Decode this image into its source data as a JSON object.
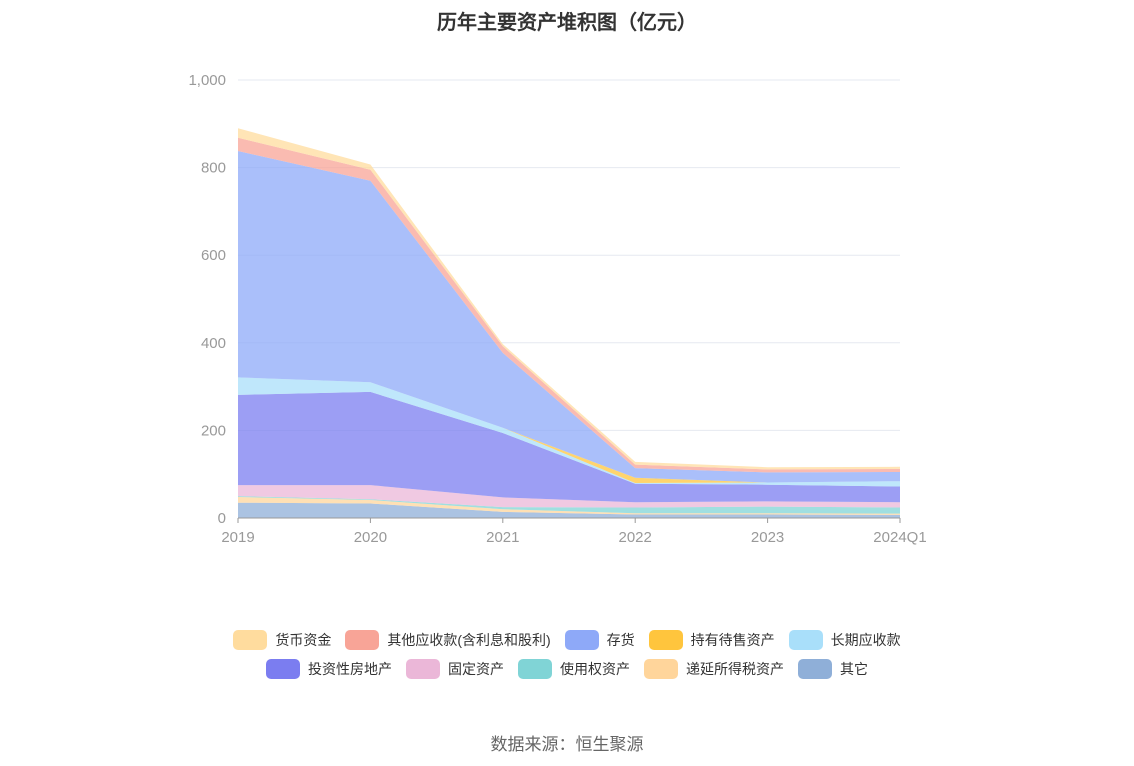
{
  "chart_data": {
    "type": "area",
    "stacked": true,
    "title": "历年主要资产堆积图（亿元）",
    "categories": [
      "2019",
      "2020",
      "2021",
      "2022",
      "2023",
      "2024Q1"
    ],
    "ylim": [
      0,
      1000
    ],
    "yticks": [
      "0",
      "200",
      "400",
      "600",
      "800",
      "1,000"
    ],
    "grid": true,
    "legend_position": "bottom",
    "series": [
      {
        "name": "其它",
        "color": "#8fafd8",
        "values": [
          35,
          33,
          14,
          8,
          8,
          7
        ]
      },
      {
        "name": "递延所得税资产",
        "color": "#ffd59b",
        "values": [
          13,
          8,
          6,
          3,
          3,
          3
        ]
      },
      {
        "name": "使用权资产",
        "color": "#80d4d6",
        "values": [
          2,
          2,
          5,
          13,
          15,
          14
        ]
      },
      {
        "name": "固定资产",
        "color": "#ebb7d8",
        "values": [
          25,
          32,
          22,
          12,
          12,
          12
        ]
      },
      {
        "name": "投资性房地产",
        "color": "#7b7df0",
        "values": [
          206,
          213,
          147,
          42,
          38,
          36
        ]
      },
      {
        "name": "长期应收款",
        "color": "#a9dffa",
        "values": [
          40,
          22,
          12,
          2,
          5,
          12
        ]
      },
      {
        "name": "持有待售资产",
        "color": "#ffc53d",
        "values": [
          0,
          0,
          0,
          12,
          0,
          0
        ]
      },
      {
        "name": "存货",
        "color": "#8ea9f8",
        "values": [
          517,
          460,
          171,
          22,
          23,
          21
        ]
      },
      {
        "name": "其他应收款(含利息和股利)",
        "color": "#f8a497",
        "values": [
          30,
          25,
          15,
          8,
          7,
          7
        ]
      },
      {
        "name": "货币资金",
        "color": "#ffdc9e",
        "values": [
          22,
          12,
          5,
          6,
          5,
          5
        ]
      }
    ]
  },
  "legend": {
    "row1": [
      {
        "label": "货币资金",
        "color": "#ffdc9e"
      },
      {
        "label": "其他应收款(含利息和股利)",
        "color": "#f8a497"
      },
      {
        "label": "存货",
        "color": "#8ea9f8"
      },
      {
        "label": "持有待售资产",
        "color": "#ffc53d"
      },
      {
        "label": "长期应收款",
        "color": "#a9dffa"
      }
    ],
    "row2": [
      {
        "label": "投资性房地产",
        "color": "#7b7df0"
      },
      {
        "label": "固定资产",
        "color": "#ebb7d8"
      },
      {
        "label": "使用权资产",
        "color": "#80d4d6"
      },
      {
        "label": "递延所得税资产",
        "color": "#ffd59b"
      },
      {
        "label": "其它",
        "color": "#8fafd8"
      }
    ]
  },
  "source": "数据来源：恒生聚源"
}
